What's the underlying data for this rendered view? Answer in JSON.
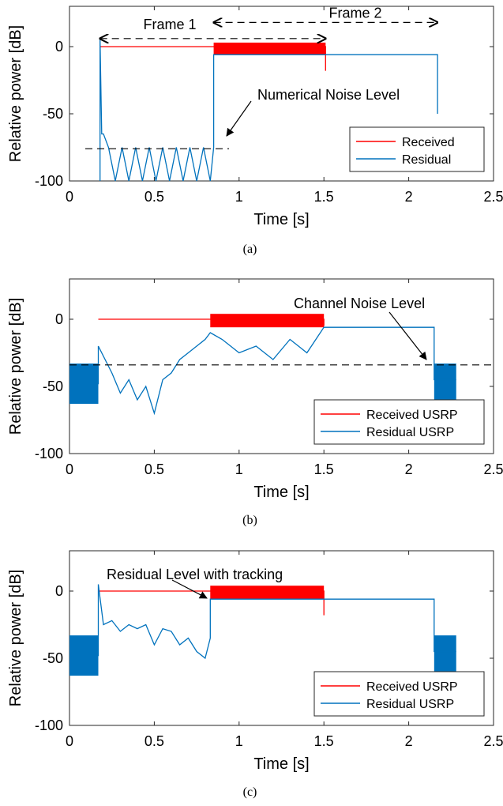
{
  "colors": {
    "received": "#ff0000",
    "residual": "#0072bd",
    "axis": "#262626",
    "dash": "#000000"
  },
  "chart_data": [
    {
      "type": "line",
      "caption": "(a)",
      "xlabel": "Time [s]",
      "ylabel": "Relative power [dB]",
      "xlim": [
        0,
        2.5
      ],
      "ylim": [
        -100,
        30
      ],
      "xticks": [
        "0",
        "0.5",
        "1",
        "1.5",
        "2",
        "2.5"
      ],
      "yticks": [
        "0",
        "-50",
        "-100"
      ],
      "grid": false,
      "legend_position": "bottom-right",
      "legend": [
        "Received",
        "Residual"
      ],
      "series": [
        {
          "name": "Received",
          "x": [
            0.18,
            0.85,
            0.85,
            1.51,
            1.51
          ],
          "y": [
            0,
            0,
            0,
            0,
            -18
          ],
          "band": {
            "x": [
              0.85,
              1.51
            ],
            "y": [
              -6,
              3
            ]
          }
        },
        {
          "name": "Residual",
          "x": [
            0.18,
            0.18,
            0.19,
            0.2,
            0.23,
            0.27,
            0.31,
            0.35,
            0.39,
            0.43,
            0.47,
            0.51,
            0.55,
            0.59,
            0.63,
            0.67,
            0.71,
            0.75,
            0.79,
            0.83,
            0.85,
            0.85,
            2.17,
            2.17
          ],
          "y": [
            -100,
            5,
            -65,
            -65,
            -75,
            -100,
            -75,
            -100,
            -75,
            -100,
            -75,
            -100,
            -75,
            -100,
            -75,
            -100,
            -75,
            -100,
            -75,
            -100,
            -75,
            -6,
            -6,
            -50
          ]
        }
      ],
      "annotations": [
        {
          "text": "Frame 1",
          "x_from": 0.18,
          "x_to": 1.51,
          "y": 6
        },
        {
          "text": "Frame 2",
          "x_from": 0.85,
          "x_to": 2.17,
          "y": 18
        },
        {
          "text": "Numerical Noise Level",
          "y": -76
        }
      ]
    },
    {
      "type": "line",
      "caption": "(b)",
      "xlabel": "Time [s]",
      "ylabel": "Relative power [dB]",
      "xlim": [
        0,
        2.5
      ],
      "ylim": [
        -100,
        30
      ],
      "xticks": [
        "0",
        "0.5",
        "1",
        "1.5",
        "2",
        "2.5"
      ],
      "yticks": [
        "0",
        "-50",
        "-100"
      ],
      "grid": false,
      "legend_position": "bottom-right",
      "legend": [
        "Received USRP",
        "Residual USRP"
      ],
      "series": [
        {
          "name": "Received USRP",
          "x": [
            0.17,
            0.83,
            0.83,
            1.5,
            1.5
          ],
          "y": [
            0,
            0,
            0,
            0,
            -5
          ],
          "band": {
            "x": [
              0.83,
              1.5
            ],
            "y": [
              -6,
              4
            ]
          }
        },
        {
          "name": "Residual USRP",
          "x": [
            0,
            0.17,
            0.17,
            0.25,
            0.3,
            0.35,
            0.4,
            0.45,
            0.5,
            0.55,
            0.6,
            0.65,
            0.7,
            0.75,
            0.8,
            0.83,
            0.9,
            1.0,
            1.1,
            1.2,
            1.3,
            1.4,
            1.5,
            1.5,
            2.15,
            2.15,
            2.28
          ],
          "y": [
            -48,
            -48,
            -20,
            -40,
            -55,
            -45,
            -60,
            -50,
            -70,
            -45,
            -40,
            -30,
            -25,
            -20,
            -15,
            -10,
            -15,
            -25,
            -20,
            -30,
            -15,
            -25,
            -6,
            -6,
            -6,
            -45,
            -45
          ],
          "band_segments": [
            {
              "x": [
                0,
                0.17
              ],
              "y": [
                -63,
                -33
              ]
            },
            {
              "x": [
                2.15,
                2.28
              ],
              "y": [
                -63,
                -33
              ]
            }
          ]
        }
      ],
      "annotations": [
        {
          "text": "Channel Noise Level",
          "y": -34
        }
      ]
    },
    {
      "type": "line",
      "caption": "(c)",
      "xlabel": "Time [s]",
      "ylabel": "Relative power [dB]",
      "xlim": [
        0,
        2.5
      ],
      "ylim": [
        -100,
        30
      ],
      "xticks": [
        "0",
        "0.5",
        "1",
        "1.5",
        "2",
        "2.5"
      ],
      "yticks": [
        "0",
        "-50",
        "-100"
      ],
      "grid": false,
      "legend_position": "bottom-right",
      "legend": [
        "Received USRP",
        "Residual USRP"
      ],
      "series": [
        {
          "name": "Received USRP",
          "x": [
            0.17,
            0.83,
            0.83,
            1.5,
            1.5
          ],
          "y": [
            0,
            0,
            0,
            0,
            -18
          ],
          "band": {
            "x": [
              0.83,
              1.5
            ],
            "y": [
              -6,
              4
            ]
          }
        },
        {
          "name": "Residual USRP",
          "x": [
            0,
            0.17,
            0.17,
            0.2,
            0.25,
            0.3,
            0.35,
            0.4,
            0.45,
            0.5,
            0.55,
            0.6,
            0.65,
            0.7,
            0.75,
            0.8,
            0.83,
            0.83,
            1.5,
            1.5,
            2.15,
            2.15,
            2.28
          ],
          "y": [
            -48,
            -48,
            5,
            -25,
            -22,
            -30,
            -25,
            -28,
            -25,
            -40,
            -28,
            -30,
            -40,
            -35,
            -45,
            -50,
            -35,
            -6,
            -6,
            -6,
            -6,
            -45,
            -45
          ],
          "band_segments": [
            {
              "x": [
                0,
                0.17
              ],
              "y": [
                -63,
                -33
              ]
            },
            {
              "x": [
                2.15,
                2.28
              ],
              "y": [
                -63,
                -33
              ]
            }
          ]
        }
      ],
      "annotations": [
        {
          "text": "Residual Level with tracking",
          "y": -6
        }
      ]
    }
  ]
}
